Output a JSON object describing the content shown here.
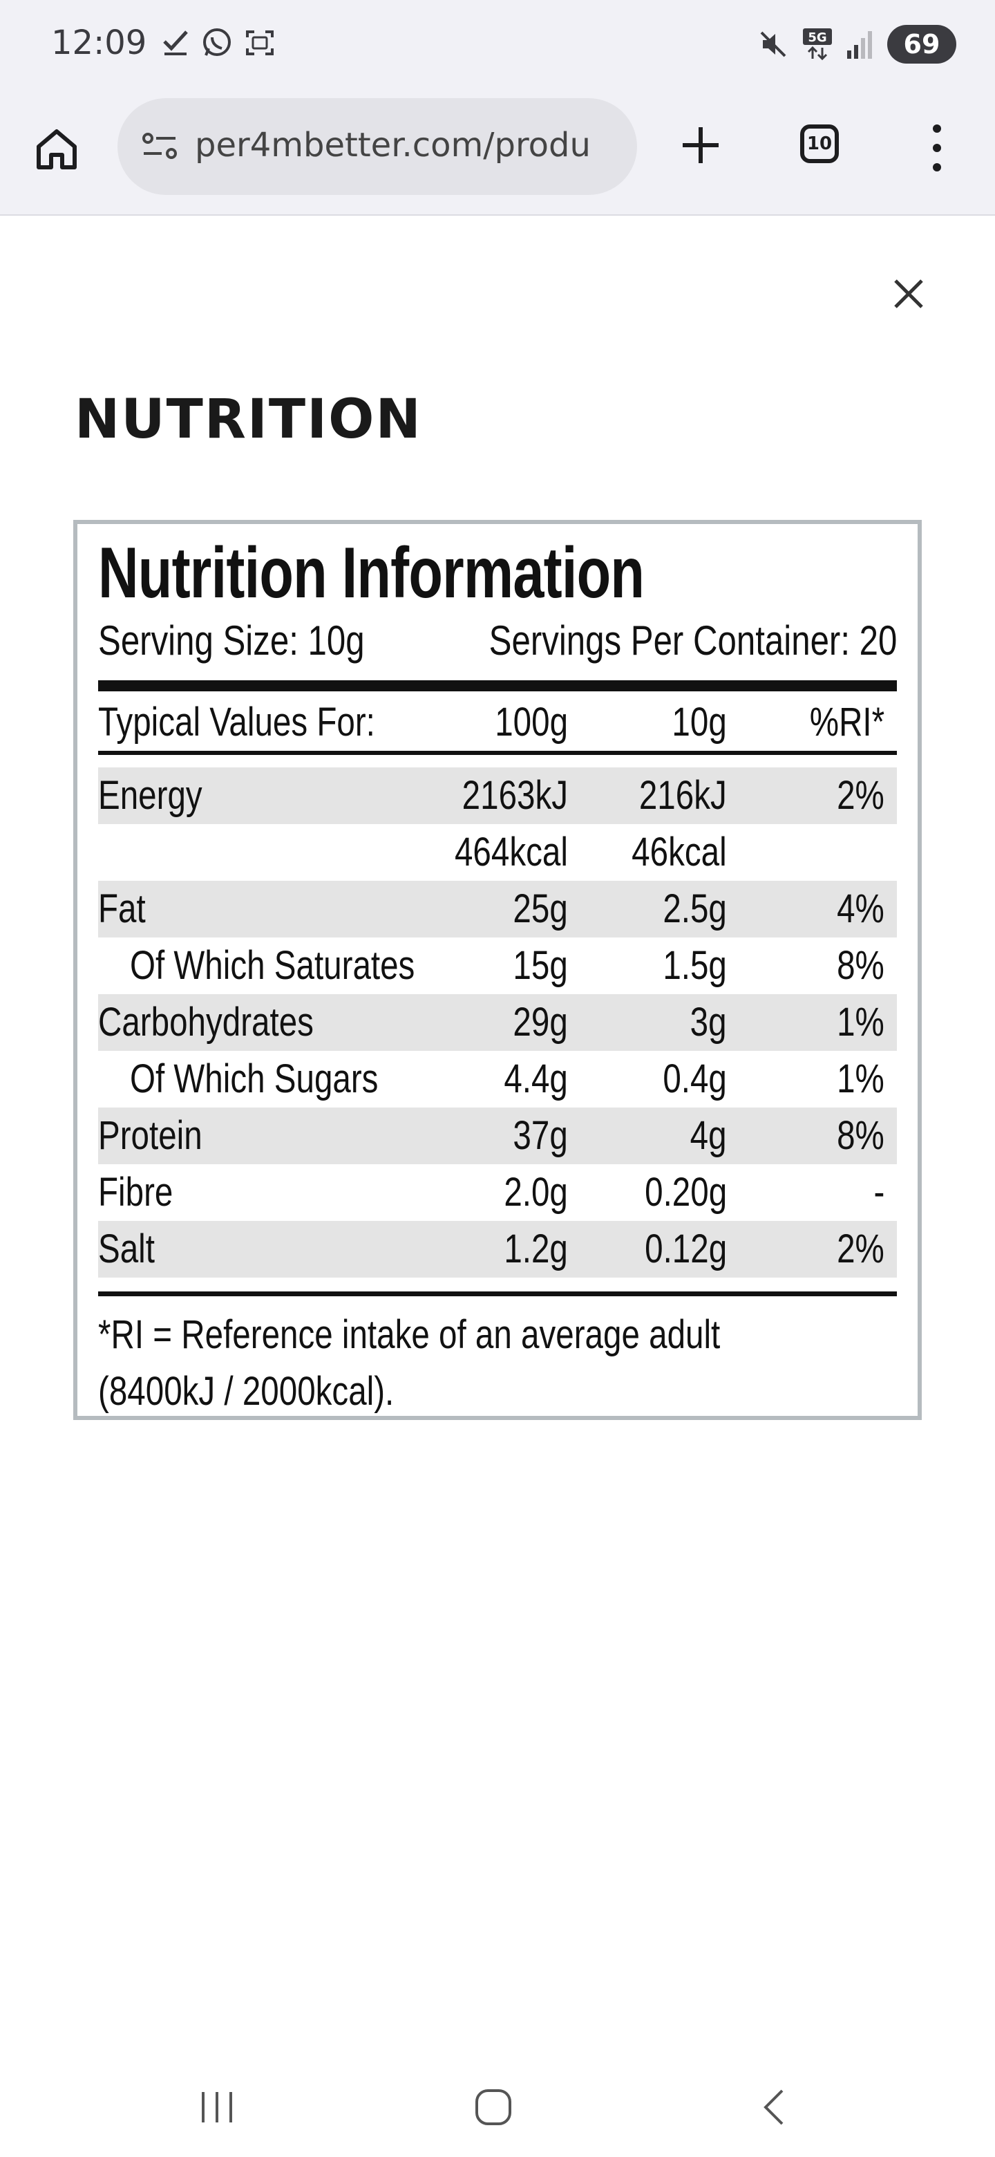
{
  "status_bar": {
    "time": "12:09",
    "battery": "69",
    "network": "5G"
  },
  "browser": {
    "url": "per4mbetter.com/produ",
    "tab_count": "10"
  },
  "page": {
    "title": "NUTRITION"
  },
  "nutrition": {
    "title": "Nutrition Information",
    "serving_size": "Serving Size: 10g",
    "servings_per_container": "Servings Per Container: 20",
    "header": {
      "label": "Typical Values For:",
      "col_100g": "100g",
      "col_10g": "10g",
      "col_ri": "%RI*"
    },
    "rows": [
      {
        "name": "Energy",
        "per100": "2163kJ",
        "per10": "216kJ",
        "ri": "2%"
      },
      {
        "name": "",
        "per100": "464kcal",
        "per10": "46kcal",
        "ri": ""
      },
      {
        "name": "Fat",
        "per100": "25g",
        "per10": "2.5g",
        "ri": "4%"
      },
      {
        "name": "Of Which Saturates",
        "per100": "15g",
        "per10": "1.5g",
        "ri": "8%"
      },
      {
        "name": "Carbohydrates",
        "per100": "29g",
        "per10": "3g",
        "ri": "1%"
      },
      {
        "name": "Of Which Sugars",
        "per100": "4.4g",
        "per10": "0.4g",
        "ri": "1%"
      },
      {
        "name": "Protein",
        "per100": "37g",
        "per10": "4g",
        "ri": "8%"
      },
      {
        "name": "Fibre",
        "per100": "2.0g",
        "per10": "0.20g",
        "ri": "-"
      },
      {
        "name": "Salt",
        "per100": "1.2g",
        "per10": "0.12g",
        "ri": "2%"
      }
    ],
    "footnote_line1": "*RI = Reference intake of an average adult",
    "footnote_line2": "(8400kJ / 2000kcal)."
  },
  "colors": {
    "status_bg": "#f1f1f6",
    "url_bar_bg": "#e3e3e8",
    "row_shade": "#e4e4e4",
    "label_border": "#b5bbbf"
  }
}
